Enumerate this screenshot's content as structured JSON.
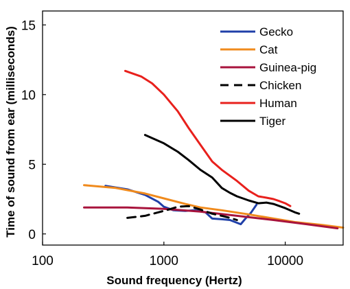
{
  "chart_data": {
    "type": "line",
    "xlabel": "Sound frequency (Hertz)",
    "ylabel": "Time of sound from ear (milliseconds)",
    "xscale": "log",
    "xlim": [
      100,
      30000
    ],
    "ylim": [
      -0.8,
      16
    ],
    "xticks": [
      100,
      1000,
      10000
    ],
    "xtick_labels": [
      "100",
      "1000",
      "10000"
    ],
    "yticks": [
      0,
      5,
      10,
      15
    ],
    "ytick_labels": [
      "0",
      "5",
      "10",
      "15"
    ],
    "grid": false,
    "legend_position": "top-right",
    "series": [
      {
        "name": "Gecko",
        "color": "#1f3fa8",
        "dash": "solid",
        "x": [
          330,
          500,
          700,
          900,
          1000,
          1200,
          1500,
          1800,
          2200,
          2500,
          3000,
          3500,
          4000,
          4300,
          4700,
          5200,
          5800
        ],
        "y": [
          3.45,
          3.2,
          2.8,
          2.3,
          1.95,
          1.7,
          1.65,
          1.7,
          1.55,
          1.1,
          1.05,
          1.0,
          0.8,
          0.7,
          1.1,
          1.5,
          2.1
        ]
      },
      {
        "name": "Cat",
        "color": "#f08a1c",
        "dash": "solid",
        "x": [
          220,
          400,
          700,
          1000,
          1500,
          2000,
          3000,
          5000,
          8000,
          12000,
          20000,
          30000
        ],
        "y": [
          3.5,
          3.3,
          2.9,
          2.55,
          2.15,
          1.9,
          1.7,
          1.4,
          1.1,
          0.85,
          0.65,
          0.45
        ]
      },
      {
        "name": "Guinea-pig",
        "color": "#a8133c",
        "dash": "solid",
        "x": [
          220,
          500,
          1000,
          2000,
          4000,
          8000,
          15000,
          27000
        ],
        "y": [
          1.9,
          1.9,
          1.8,
          1.6,
          1.3,
          1.0,
          0.7,
          0.4
        ]
      },
      {
        "name": "Chicken",
        "color": "#000000",
        "dash": "dashed",
        "x": [
          500,
          700,
          900,
          1100,
          1300,
          1600,
          2000,
          2500,
          3000,
          3500,
          4000
        ],
        "y": [
          1.15,
          1.3,
          1.55,
          1.75,
          1.95,
          2.0,
          1.75,
          1.45,
          1.3,
          1.15,
          1.0
        ]
      },
      {
        "name": "Human",
        "color": "#e8201c",
        "dash": "solid",
        "x": [
          480,
          650,
          800,
          1000,
          1300,
          1600,
          2000,
          2500,
          3000,
          4000,
          5000,
          6000,
          7000,
          8000,
          9000,
          10000,
          11000
        ],
        "y": [
          11.7,
          11.3,
          10.8,
          10.0,
          8.8,
          7.6,
          6.4,
          5.2,
          4.6,
          3.8,
          3.1,
          2.7,
          2.6,
          2.5,
          2.35,
          2.2,
          2.0
        ]
      },
      {
        "name": "Tiger",
        "color": "#000000",
        "dash": "solid",
        "x": [
          700,
          1000,
          1300,
          1600,
          2000,
          2500,
          3000,
          3500,
          4000,
          5000,
          6000,
          7000,
          8000,
          10000,
          12000,
          13000
        ],
        "y": [
          7.1,
          6.5,
          5.9,
          5.3,
          4.6,
          4.05,
          3.3,
          2.95,
          2.7,
          2.4,
          2.2,
          2.25,
          2.15,
          1.85,
          1.55,
          1.45
        ]
      }
    ]
  }
}
